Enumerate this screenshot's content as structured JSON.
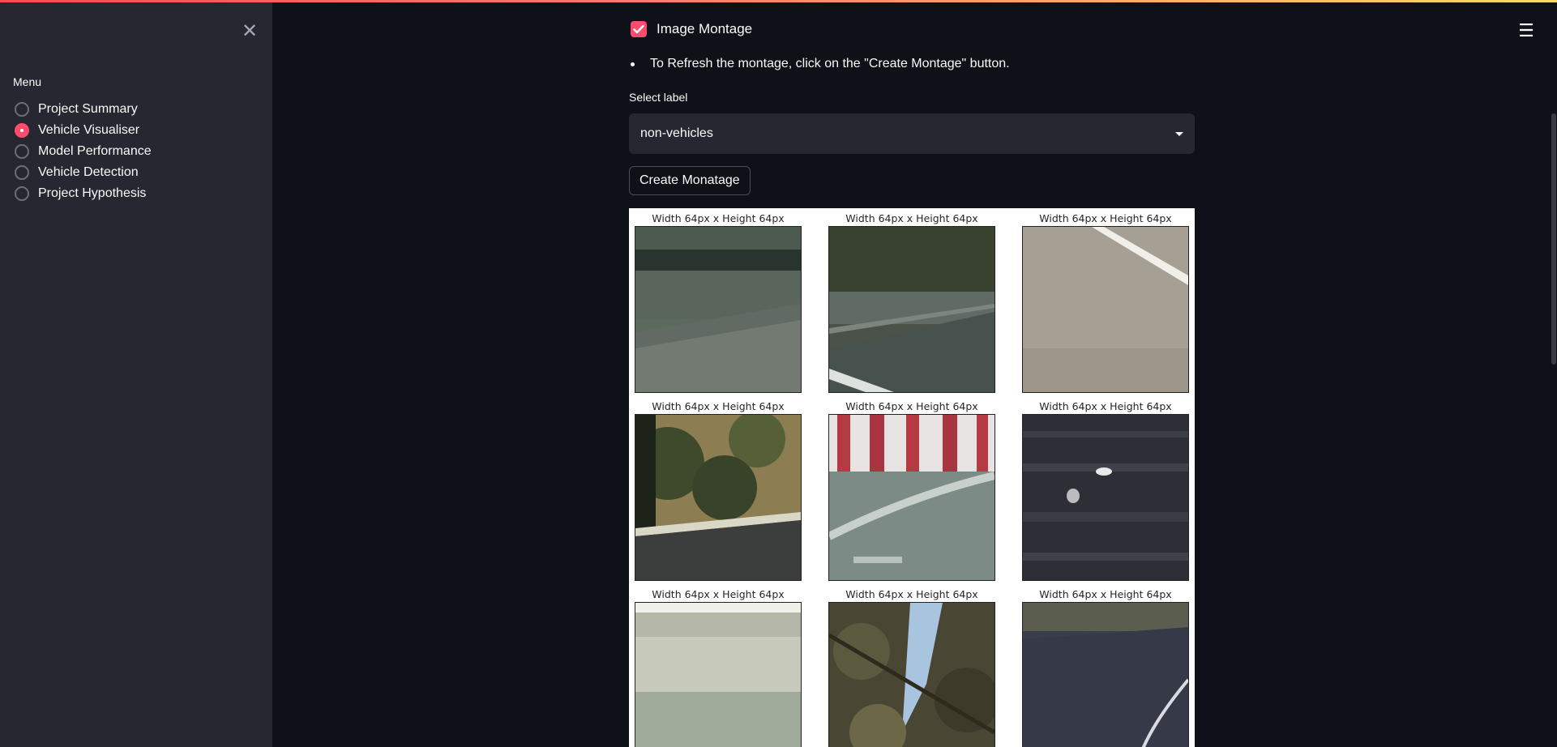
{
  "sidebar": {
    "close_icon": "close-icon",
    "menu_title": "Menu",
    "items": [
      {
        "label": "Project Summary",
        "selected": false
      },
      {
        "label": "Vehicle Visualiser",
        "selected": true
      },
      {
        "label": "Model Performance",
        "selected": false
      },
      {
        "label": "Vehicle Detection",
        "selected": false
      },
      {
        "label": "Project Hypothesis",
        "selected": false
      }
    ]
  },
  "header": {
    "menu_icon": "hamburger-icon"
  },
  "main": {
    "checkbox": {
      "label": "Image Montage",
      "checked": true
    },
    "info_bullet": "To Refresh the montage, click on the \"Create Montage\" button.",
    "select": {
      "label": "Select label",
      "value": "non-vehicles"
    },
    "create_button": "Create Monatage",
    "montage": {
      "titles": [
        "Width 64px x Height 64px",
        "Width 64px x Height 64px",
        "Width 64px x Height 64px",
        "Width 64px x Height 64px",
        "Width 64px x Height 64px",
        "Width 64px x Height 64px",
        "Width 64px x Height 64px",
        "Width 64px x Height 64px",
        "Width 64px x Height 64px"
      ]
    }
  },
  "colors": {
    "accent": "#ff4b6e",
    "background": "#0e1117",
    "sidebar": "#262730"
  }
}
